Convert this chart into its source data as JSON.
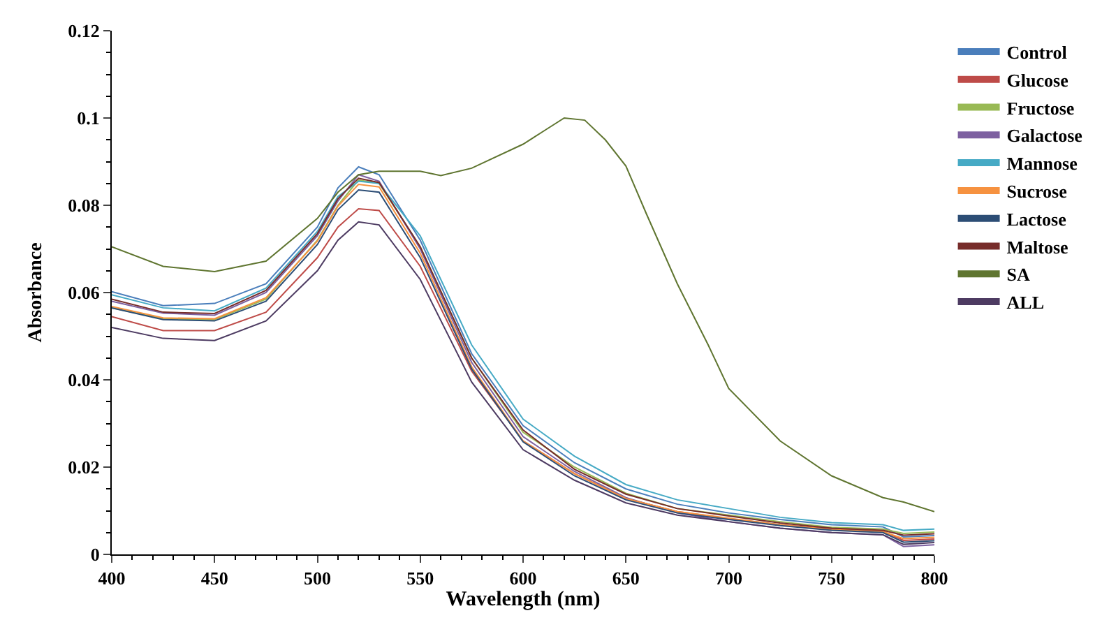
{
  "chart_data": {
    "type": "line",
    "xlabel": "Wavelength (nm)",
    "ylabel": "Absorbance",
    "xlim": [
      400,
      800
    ],
    "xticks": [
      400,
      450,
      500,
      550,
      600,
      650,
      700,
      750,
      800
    ],
    "ylim": [
      0,
      0.12
    ],
    "yticks": [
      0,
      0.02,
      0.04,
      0.06,
      0.08,
      0.1,
      0.12
    ],
    "legend": "right",
    "marker": "none",
    "line_style": "solid",
    "x": [
      400,
      425,
      450,
      475,
      500,
      510,
      520,
      530,
      550,
      575,
      600,
      625,
      650,
      675,
      700,
      725,
      750,
      775,
      785,
      800
    ],
    "series": [
      {
        "name": "Control",
        "color": "#4a7ebb",
        "values": [
          0.0602,
          0.057,
          0.0575,
          0.062,
          0.075,
          0.084,
          0.0888,
          0.087,
          0.072,
          0.046,
          0.0295,
          0.021,
          0.015,
          0.0115,
          0.0095,
          0.008,
          0.0068,
          0.0063,
          0.004,
          0.0043
        ]
      },
      {
        "name": "Glucose",
        "color": "#be4b48",
        "values": [
          0.0545,
          0.0513,
          0.0513,
          0.0555,
          0.068,
          0.075,
          0.0792,
          0.0788,
          0.066,
          0.042,
          0.026,
          0.0185,
          0.0128,
          0.0098,
          0.0082,
          0.0068,
          0.0058,
          0.0053,
          0.0032,
          0.0035
        ]
      },
      {
        "name": "Fructose",
        "color": "#98b954",
        "values": [
          0.0565,
          0.054,
          0.0538,
          0.0585,
          0.072,
          0.08,
          0.0858,
          0.085,
          0.0705,
          0.045,
          0.028,
          0.02,
          0.014,
          0.0105,
          0.009,
          0.0075,
          0.0062,
          0.0058,
          0.0048,
          0.0051
        ]
      },
      {
        "name": "Galactose",
        "color": "#7d60a0",
        "values": [
          0.058,
          0.0553,
          0.0548,
          0.06,
          0.073,
          0.081,
          0.087,
          0.0855,
          0.07,
          0.044,
          0.027,
          0.019,
          0.013,
          0.0095,
          0.0075,
          0.006,
          0.005,
          0.0045,
          0.0018,
          0.0022
        ]
      },
      {
        "name": "Mannose",
        "color": "#46aac5",
        "values": [
          0.0595,
          0.0565,
          0.0558,
          0.061,
          0.074,
          0.082,
          0.0855,
          0.085,
          0.073,
          0.048,
          0.031,
          0.0225,
          0.016,
          0.0125,
          0.0105,
          0.0085,
          0.0073,
          0.0068,
          0.0055,
          0.0058
        ]
      },
      {
        "name": "Sucrose",
        "color": "#f69240",
        "values": [
          0.0568,
          0.0542,
          0.054,
          0.0588,
          0.0718,
          0.0798,
          0.0848,
          0.0842,
          0.069,
          0.043,
          0.026,
          0.0185,
          0.0128,
          0.0098,
          0.0083,
          0.0068,
          0.0057,
          0.0052,
          0.0036,
          0.0039
        ]
      },
      {
        "name": "Lactose",
        "color": "#2c4d75",
        "values": [
          0.0565,
          0.0538,
          0.0535,
          0.058,
          0.071,
          0.079,
          0.0835,
          0.083,
          0.068,
          0.0425,
          0.0258,
          0.018,
          0.0125,
          0.0095,
          0.008,
          0.0066,
          0.0055,
          0.005,
          0.0028,
          0.0031
        ]
      },
      {
        "name": "Maltose",
        "color": "#772c2a",
        "values": [
          0.0585,
          0.0555,
          0.0552,
          0.0605,
          0.0735,
          0.0815,
          0.0862,
          0.0852,
          0.0705,
          0.045,
          0.0285,
          0.0195,
          0.0138,
          0.0105,
          0.0088,
          0.0072,
          0.006,
          0.0055,
          0.0044,
          0.0047
        ]
      },
      {
        "name": "SA",
        "color": "#5f7530",
        "x": [
          400,
          425,
          450,
          475,
          500,
          510,
          520,
          530,
          550,
          560,
          575,
          600,
          610,
          620,
          630,
          640,
          650,
          660,
          675,
          690,
          700,
          725,
          750,
          775,
          785,
          800
        ],
        "values": [
          0.0705,
          0.066,
          0.0648,
          0.0672,
          0.077,
          0.083,
          0.087,
          0.0878,
          0.0878,
          0.0868,
          0.0885,
          0.094,
          0.097,
          0.1,
          0.0995,
          0.095,
          0.089,
          0.078,
          0.062,
          0.048,
          0.038,
          0.026,
          0.018,
          0.013,
          0.012,
          0.0098
        ]
      },
      {
        "name": "ALL",
        "color": "#4d3b62",
        "values": [
          0.052,
          0.0495,
          0.049,
          0.0535,
          0.065,
          0.072,
          0.0762,
          0.0755,
          0.063,
          0.0395,
          0.024,
          0.017,
          0.0118,
          0.009,
          0.0075,
          0.006,
          0.005,
          0.0045,
          0.0023,
          0.0027
        ]
      }
    ]
  }
}
